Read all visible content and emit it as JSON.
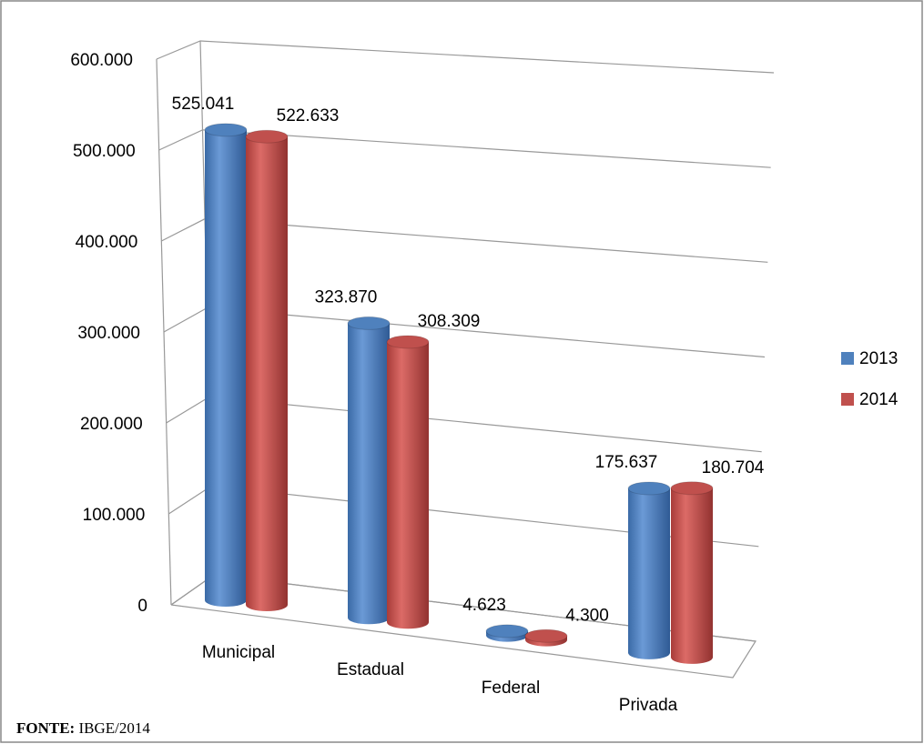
{
  "chart_data": {
    "type": "bar3d",
    "categories": [
      "Municipal",
      "Estadual",
      "Federal",
      "Privada"
    ],
    "series": [
      {
        "name": "2013",
        "color": "#4f81bd",
        "values": [
          525041,
          323870,
          4623,
          175637
        ],
        "value_labels": [
          "525.041",
          "323.870",
          "4.623",
          "175.637"
        ]
      },
      {
        "name": "2014",
        "color": "#c0504d",
        "values": [
          522633,
          308309,
          4300,
          180704
        ],
        "value_labels": [
          "522.633",
          "308.309",
          "4.300",
          "180.704"
        ]
      }
    ],
    "ylim": [
      0,
      600000
    ],
    "yticks": [
      0,
      {
        "value": 100000,
        "label": "100.000"
      },
      {
        "value": 200000,
        "label": "200.000"
      },
      {
        "value": 300000,
        "label": "300.000"
      },
      {
        "value": 400000,
        "label": "400.000"
      },
      {
        "value": 500000,
        "label": "500.000"
      },
      {
        "value": 600000,
        "label": "600.000"
      }
    ],
    "grid": true,
    "legend": "right"
  },
  "footer": {
    "label": "FONTE:",
    "text": "IBGE/2014"
  }
}
